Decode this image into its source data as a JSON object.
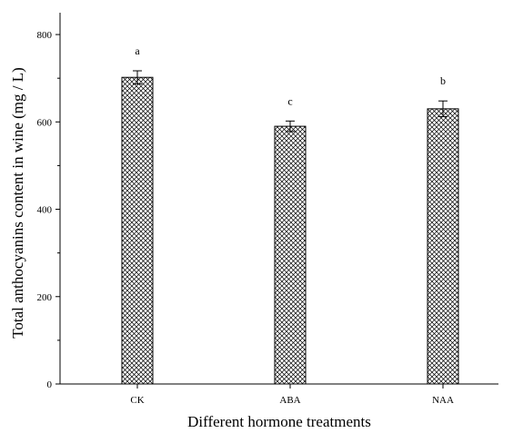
{
  "chart_data": {
    "type": "bar",
    "xlabel": "Different hormone treatments",
    "ylabel": "Total anthocyanins content in wine (mg / L)",
    "categories": [
      "CK",
      "ABA",
      "NAA"
    ],
    "values": [
      702,
      590,
      630
    ],
    "errors": [
      15,
      12,
      18
    ],
    "significance": [
      "a",
      "c",
      "b"
    ],
    "ylim": [
      0,
      850
    ],
    "yticks": [
      0,
      200,
      400,
      600,
      800
    ],
    "grid": false,
    "bar_fill": "crosshatch",
    "colors": {
      "bar_stroke": "#000000",
      "hatch": "#000000",
      "background": "#ffffff"
    }
  }
}
